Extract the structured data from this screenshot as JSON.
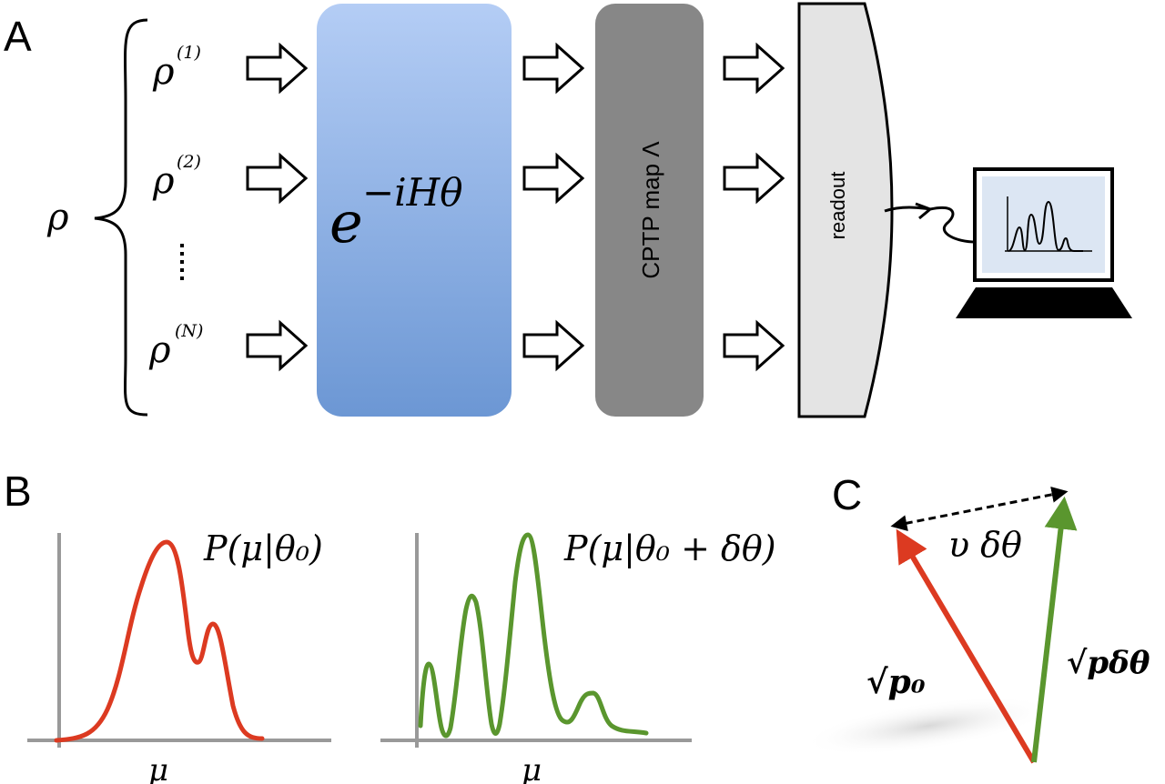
{
  "panels": {
    "a": "A",
    "b": "B",
    "c": "C"
  },
  "panel_a": {
    "rho_main": "ρ",
    "inputs": [
      {
        "base": "ρ",
        "sup": "(1)"
      },
      {
        "base": "ρ",
        "sup": "(2)"
      },
      {
        "base": "ρ",
        "sup": "(N)"
      }
    ],
    "unitary": {
      "base": "e",
      "exponent": "−iHθ"
    },
    "cptp_label": "CPTP map Λ",
    "readout_label": "readout"
  },
  "panel_b": {
    "left_label": "P(μ|θ₀)",
    "right_label": "P(μ|θ₀ + δθ)",
    "left_axis_label": "μ",
    "right_axis_label": "μ"
  },
  "panel_c": {
    "top_label": "υ δθ",
    "left_label": "√p₀",
    "right_label": "√pδθ"
  },
  "colors": {
    "unitary_top": "#b4cdf5",
    "unitary_bottom": "#6c97d4",
    "cptp": "#878787",
    "readout_fill": "#e4e4e4",
    "red": "#dc3a21",
    "green": "#5a962e",
    "axis": "#999999"
  }
}
